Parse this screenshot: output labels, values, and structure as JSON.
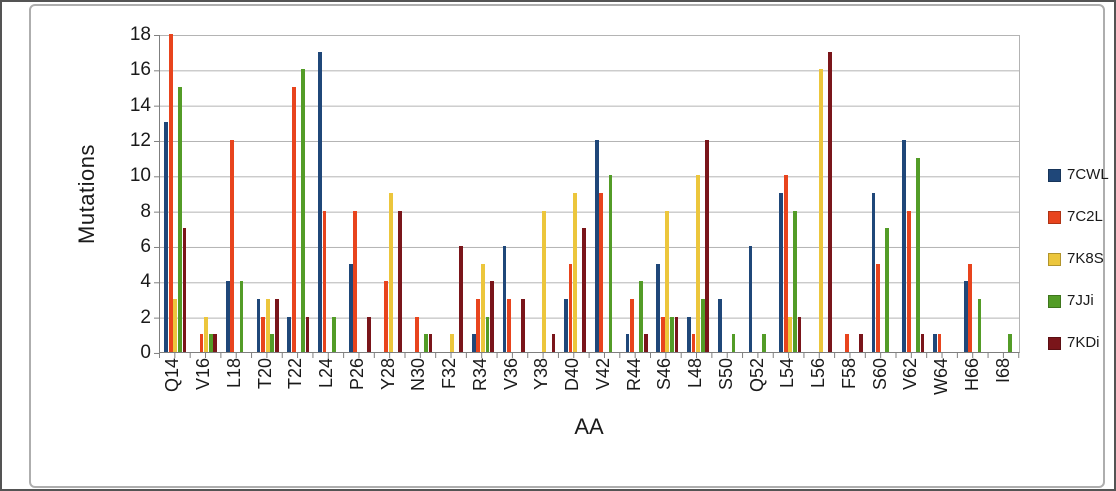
{
  "chart_data": {
    "type": "bar",
    "title": "",
    "xlabel": "AA",
    "ylabel": "Mutations",
    "ylim": [
      0,
      18
    ],
    "ytick_step": 2,
    "grid": true,
    "legend_position": "right",
    "categories": [
      "Q14",
      "V16",
      "L18",
      "T20",
      "T22",
      "L24",
      "P26",
      "Y28",
      "N30",
      "F32",
      "R34",
      "V36",
      "Y38",
      "D40",
      "V42",
      "R44",
      "S46",
      "L48",
      "S50",
      "Q52",
      "L54",
      "L56",
      "F58",
      "S60",
      "V62",
      "W64",
      "H66",
      "I68"
    ],
    "series": [
      {
        "name": "7CWL",
        "color": "#1f4779",
        "values": [
          13,
          0,
          4,
          3,
          2,
          17,
          5,
          0,
          0,
          0,
          1,
          6,
          0,
          3,
          12,
          1,
          5,
          2,
          3,
          6,
          9,
          0,
          0,
          9,
          12,
          1,
          4,
          0
        ]
      },
      {
        "name": "7C2L",
        "color": "#e8441d",
        "values": [
          18,
          1,
          12,
          2,
          15,
          8,
          8,
          4,
          2,
          0,
          3,
          3,
          0,
          5,
          9,
          3,
          2,
          1,
          0,
          0,
          10,
          0,
          1,
          5,
          8,
          1,
          5,
          0
        ]
      },
      {
        "name": "7K8S",
        "color": "#ecc63c",
        "values": [
          3,
          2,
          0,
          3,
          0,
          0,
          0,
          9,
          0,
          1,
          5,
          0,
          8,
          9,
          0,
          0,
          8,
          10,
          0,
          0,
          2,
          16,
          0,
          0,
          0,
          0,
          0,
          0
        ]
      },
      {
        "name": "7JJi",
        "color": "#539c27",
        "values": [
          15,
          1,
          4,
          1,
          16,
          2,
          0,
          0,
          1,
          0,
          2,
          0,
          0,
          0,
          10,
          4,
          2,
          3,
          1,
          1,
          8,
          0,
          0,
          7,
          11,
          0,
          3,
          1
        ]
      },
      {
        "name": "7KDi",
        "color": "#7a151a",
        "values": [
          7,
          1,
          0,
          3,
          2,
          0,
          2,
          8,
          1,
          6,
          4,
          3,
          1,
          7,
          0,
          1,
          2,
          12,
          0,
          0,
          2,
          17,
          1,
          0,
          1,
          0,
          0,
          0
        ]
      }
    ]
  }
}
